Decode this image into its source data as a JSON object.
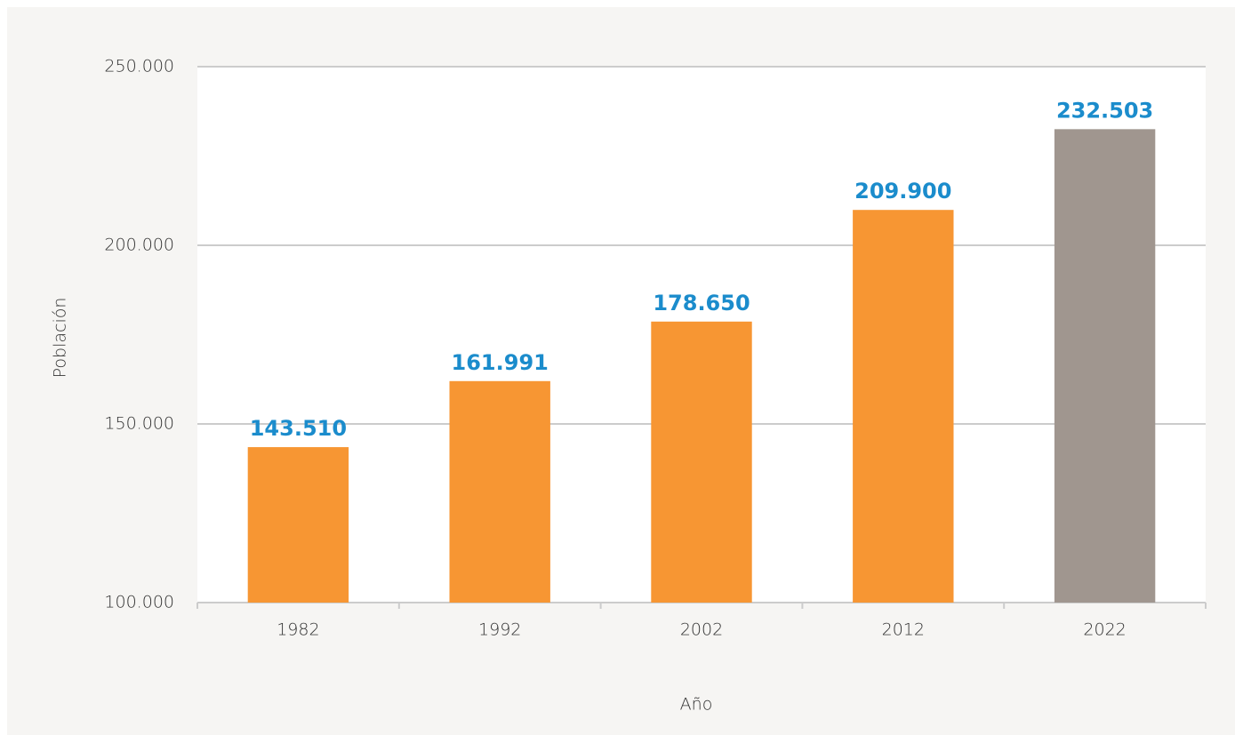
{
  "chart_data": {
    "type": "bar",
    "x_label": "Año",
    "y_label": "Población",
    "categories": [
      "1982",
      "1992",
      "2002",
      "2012",
      "2022"
    ],
    "values": [
      143510,
      161991,
      178650,
      209900,
      232503
    ],
    "value_labels": [
      "143.510",
      "161.991",
      "178.650",
      "209.900",
      "232.503"
    ],
    "colors": [
      "#f79633",
      "#f79633",
      "#f79633",
      "#f79633",
      "#a0968f"
    ],
    "value_label_color": "#1b8ccc",
    "ylim": [
      100000,
      250000
    ],
    "yticks": [
      {
        "value": 100000,
        "label": "100.000"
      },
      {
        "value": 150000,
        "label": "150.000"
      },
      {
        "value": 200000,
        "label": "200.000"
      },
      {
        "value": 250000,
        "label": "250.000"
      }
    ],
    "grid": true
  }
}
